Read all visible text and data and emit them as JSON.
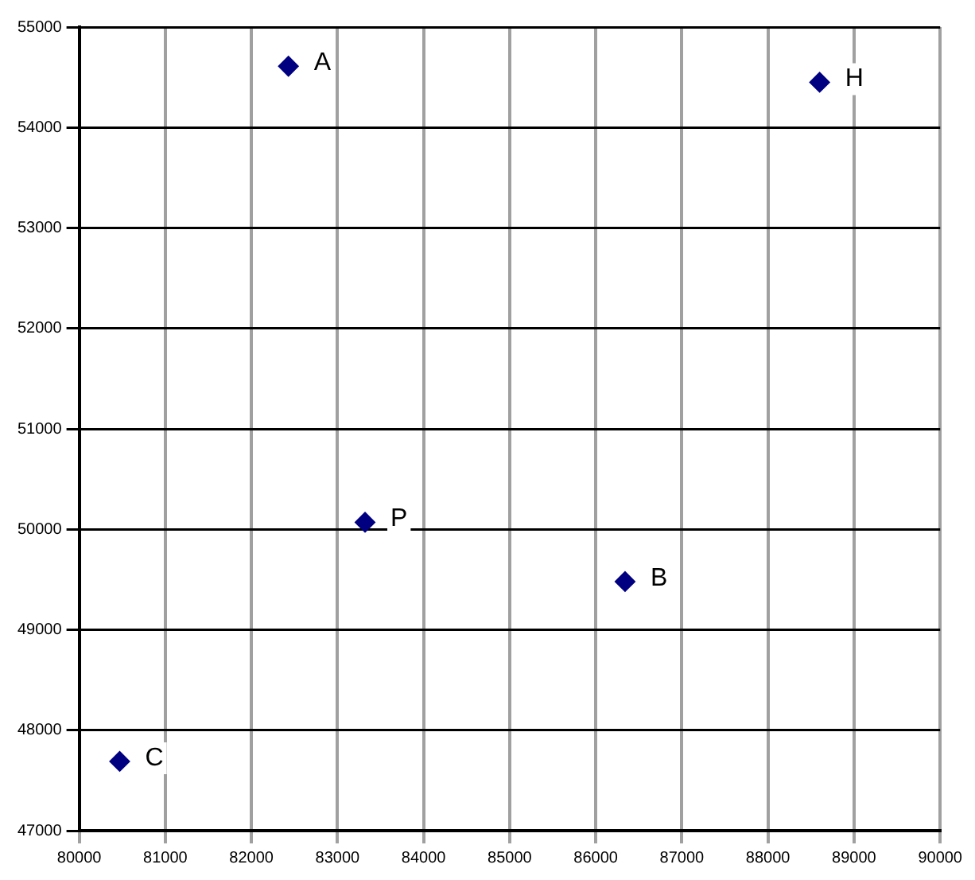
{
  "chart_data": {
    "type": "scatter",
    "x": [
      82430,
      88600,
      83320,
      86340,
      80470
    ],
    "values": [
      54610,
      54450,
      50070,
      49480,
      47690
    ],
    "color": "#000080",
    "marker": "diamond",
    "xlim": [
      80000,
      90000
    ],
    "xticks": [
      80000,
      81000,
      82000,
      83000,
      84000,
      85000,
      86000,
      87000,
      88000,
      89000,
      90000
    ],
    "ylim": [
      47000,
      55000
    ],
    "yticks": [
      47000,
      48000,
      49000,
      50000,
      51000,
      52000,
      53000,
      54000,
      55000
    ],
    "grid": true,
    "legend": false,
    "annotations": [
      {
        "text": "A",
        "x": 82430,
        "y": 54610
      },
      {
        "text": "H",
        "x": 88600,
        "y": 54450
      },
      {
        "text": "P",
        "x": 83320,
        "y": 50070
      },
      {
        "text": "B",
        "x": 86340,
        "y": 49480
      },
      {
        "text": "C",
        "x": 80470,
        "y": 47690
      }
    ]
  }
}
